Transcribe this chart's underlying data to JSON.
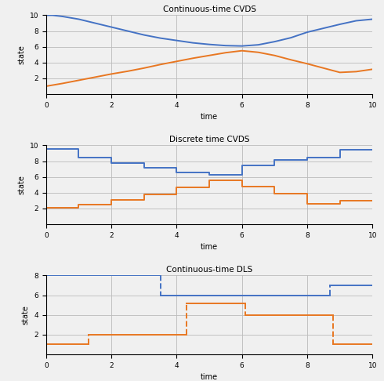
{
  "title1": "Continuous-time CVDS",
  "title2": "Discrete time CVDS",
  "title3": "Continuous-time DLS",
  "xlabel": "time",
  "ylabel": "state",
  "blue_color": "#4472C4",
  "orange_color": "#E87722",
  "cvds_cont_blue_x": [
    0,
    0.2,
    0.5,
    1,
    1.5,
    2,
    2.5,
    3,
    3.5,
    4,
    4.5,
    5,
    5.5,
    6,
    6.5,
    7,
    7.5,
    8,
    8.5,
    9,
    9.5,
    10
  ],
  "cvds_cont_blue_y": [
    10,
    10.0,
    9.85,
    9.5,
    9.0,
    8.5,
    8.0,
    7.5,
    7.1,
    6.8,
    6.5,
    6.3,
    6.15,
    6.1,
    6.25,
    6.65,
    7.15,
    7.85,
    8.35,
    8.85,
    9.3,
    9.5
  ],
  "cvds_cont_orange_x": [
    0,
    0.5,
    1,
    1.5,
    2,
    2.5,
    3,
    3.5,
    4,
    4.5,
    5,
    5.5,
    6,
    6.5,
    7,
    7.5,
    8,
    8.5,
    9,
    9.5,
    10
  ],
  "cvds_cont_orange_y": [
    1.0,
    1.35,
    1.75,
    2.15,
    2.55,
    2.9,
    3.3,
    3.75,
    4.15,
    4.55,
    4.9,
    5.25,
    5.5,
    5.3,
    4.9,
    4.35,
    3.85,
    3.3,
    2.75,
    2.85,
    3.15
  ],
  "cvds_disc_blue_x": [
    0,
    1,
    1,
    2,
    2,
    3,
    3,
    4,
    4,
    5,
    5,
    6,
    6,
    7,
    7,
    8,
    8,
    9,
    9,
    10
  ],
  "cvds_disc_blue_y": [
    9.5,
    9.5,
    8.5,
    8.5,
    7.8,
    7.8,
    7.2,
    7.2,
    6.6,
    6.6,
    6.3,
    6.3,
    7.5,
    7.5,
    8.2,
    8.2,
    8.5,
    8.5,
    9.4,
    9.4
  ],
  "cvds_disc_orange_x": [
    0,
    1,
    1,
    2,
    2,
    3,
    3,
    4,
    4,
    5,
    5,
    6,
    6,
    7,
    7,
    8,
    8,
    9,
    9,
    10
  ],
  "cvds_disc_orange_y": [
    2.1,
    2.1,
    2.5,
    2.5,
    3.1,
    3.1,
    3.8,
    3.8,
    4.7,
    4.7,
    5.6,
    5.6,
    4.8,
    4.8,
    3.9,
    3.9,
    2.6,
    2.6,
    3.0,
    3.0
  ],
  "dls_blue_segments": [
    {
      "x": [
        0,
        3.5
      ],
      "y": [
        8,
        8
      ],
      "style": "solid"
    },
    {
      "x": [
        3.5,
        3.5
      ],
      "y": [
        8,
        6.0
      ],
      "style": "dashed"
    },
    {
      "x": [
        3.5,
        8.7
      ],
      "y": [
        6.0,
        6.0
      ],
      "style": "solid"
    },
    {
      "x": [
        8.7,
        8.7
      ],
      "y": [
        6.0,
        7.0
      ],
      "style": "dashed"
    },
    {
      "x": [
        8.7,
        10
      ],
      "y": [
        7.0,
        7.0
      ],
      "style": "solid"
    }
  ],
  "dls_orange_segments": [
    {
      "x": [
        0,
        1.3
      ],
      "y": [
        1.0,
        1.0
      ],
      "style": "solid"
    },
    {
      "x": [
        1.3,
        1.3
      ],
      "y": [
        1.0,
        2.0
      ],
      "style": "dashed"
    },
    {
      "x": [
        1.3,
        4.3
      ],
      "y": [
        2.0,
        2.0
      ],
      "style": "solid"
    },
    {
      "x": [
        4.3,
        4.3
      ],
      "y": [
        2.0,
        5.2
      ],
      "style": "dashed"
    },
    {
      "x": [
        4.3,
        6.1
      ],
      "y": [
        5.2,
        5.2
      ],
      "style": "solid"
    },
    {
      "x": [
        6.1,
        6.1
      ],
      "y": [
        5.2,
        4.0
      ],
      "style": "dashed"
    },
    {
      "x": [
        6.1,
        8.8
      ],
      "y": [
        4.0,
        4.0
      ],
      "style": "solid"
    },
    {
      "x": [
        8.8,
        8.8
      ],
      "y": [
        4.0,
        1.0
      ],
      "style": "dashed"
    },
    {
      "x": [
        8.8,
        10
      ],
      "y": [
        1.0,
        1.0
      ],
      "style": "solid"
    }
  ],
  "xlim": [
    0,
    10
  ],
  "ylim1": [
    0,
    10
  ],
  "ylim2": [
    0,
    10
  ],
  "ylim3": [
    0,
    8
  ],
  "xticks": [
    0,
    2,
    4,
    6,
    8,
    10
  ],
  "yticks1": [
    2,
    4,
    6,
    8,
    10
  ],
  "yticks2": [
    2,
    4,
    6,
    8,
    10
  ],
  "yticks3": [
    2,
    4,
    6,
    8
  ],
  "grid_color": "#bbbbbb",
  "bg_color": "#f0f0f0",
  "figsize": [
    4.9,
    4.86
  ],
  "dpi": 100
}
